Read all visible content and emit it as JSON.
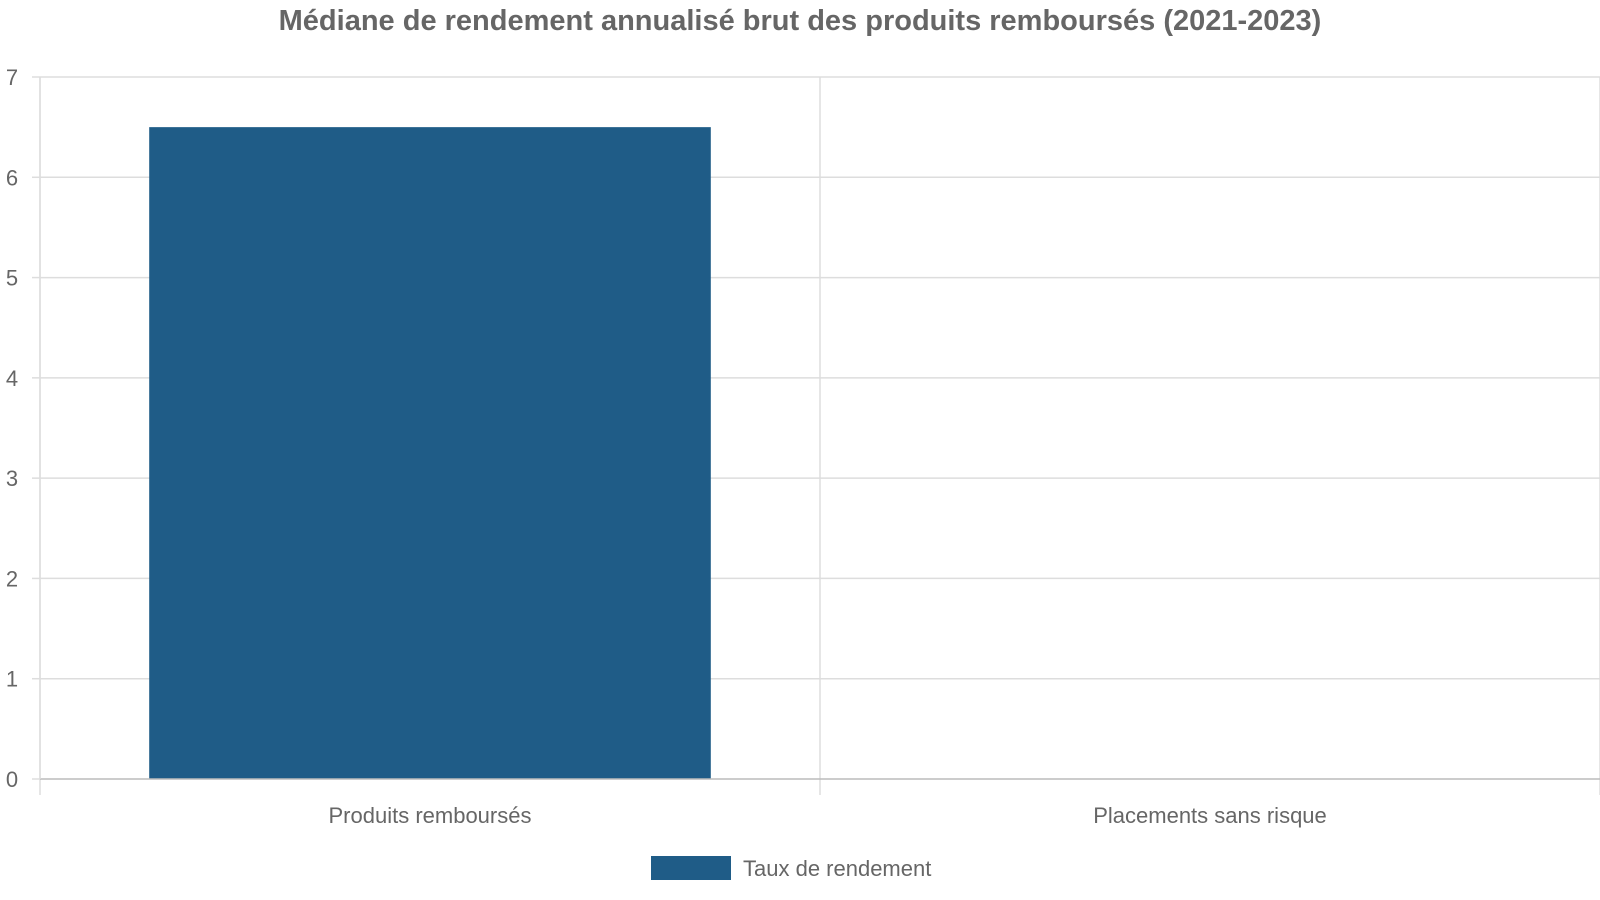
{
  "chart_data": {
    "type": "bar",
    "title": "Médiane de rendement annualisé brut des produits remboursés (2021-2023)",
    "xlabel": "",
    "ylabel": "",
    "categories": [
      "Produits remboursés",
      "Placements sans risque"
    ],
    "series": [
      {
        "name": "Taux de rendement",
        "values": [
          6.5,
          0
        ],
        "color": "#1f5c87"
      }
    ],
    "ylim": [
      0,
      7
    ],
    "yticks": [
      "0",
      "1",
      "2",
      "3",
      "4",
      "5",
      "6",
      "7"
    ],
    "grid": true,
    "legend_position": "bottom-center"
  },
  "colors": {
    "grid": "#dddddd",
    "axis": "#bbbbbb",
    "text": "#666666"
  }
}
